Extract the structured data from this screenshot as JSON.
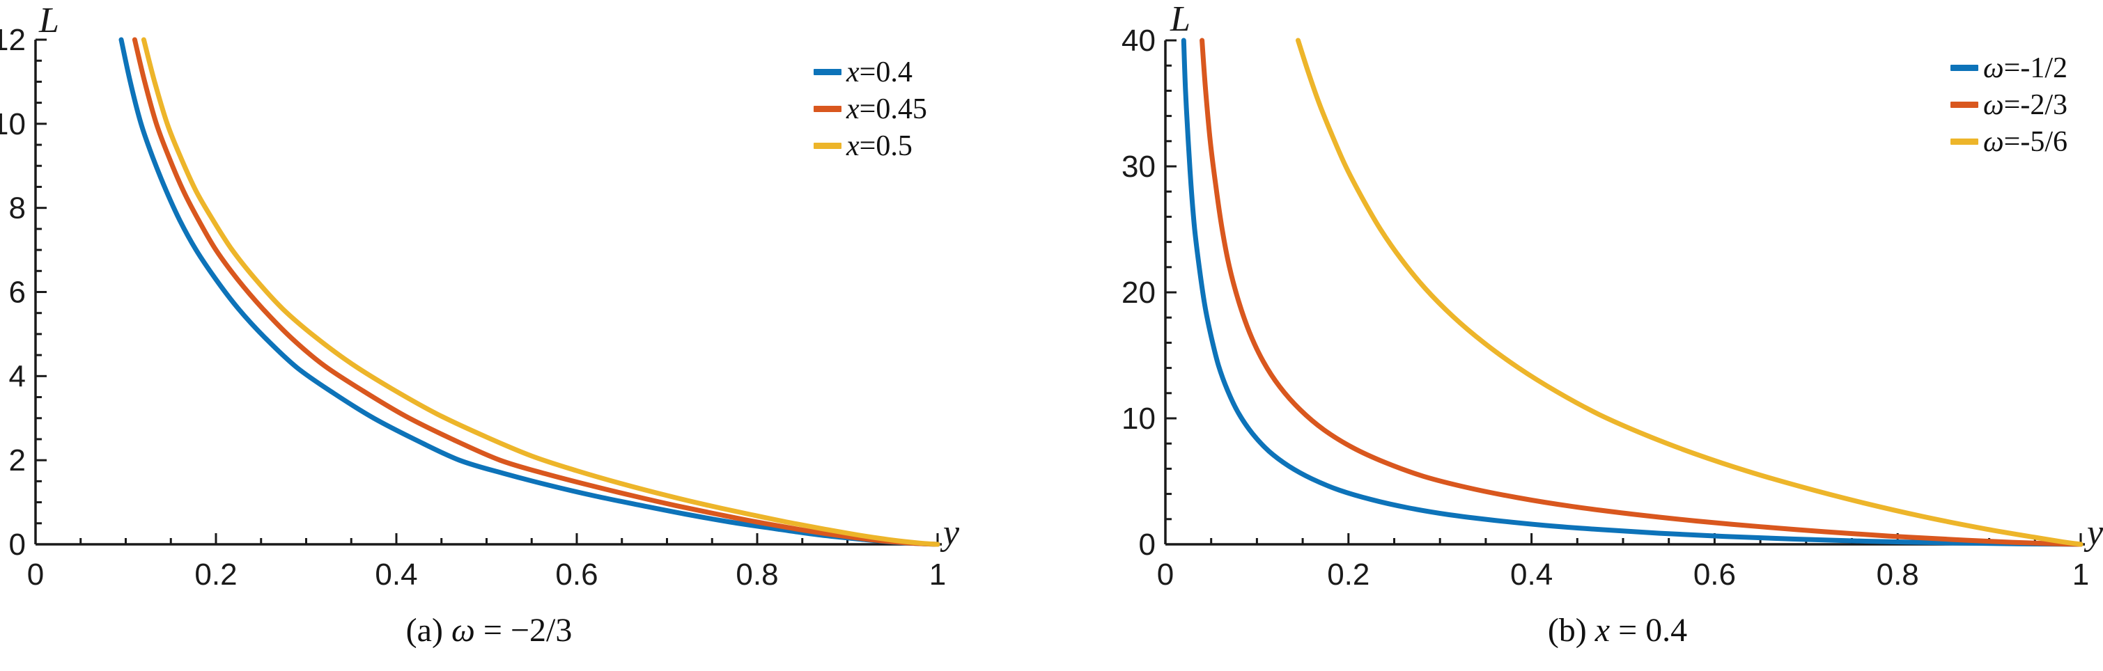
{
  "figure": {
    "background": "#ffffff",
    "text_color": "#1a1a1a"
  },
  "chart_data": [
    {
      "type": "line",
      "panel": "a",
      "caption_prefix": "(a)",
      "caption_var": "ω",
      "caption_rest": " = −2/3",
      "caption_full": "(a) ω = −2/3",
      "xlabel": "y",
      "ylabel": "L",
      "xlim": [
        0,
        1
      ],
      "ylim": [
        0,
        12
      ],
      "x_major_ticks": [
        0,
        0.2,
        0.4,
        0.6,
        0.8,
        1
      ],
      "x_tick_labels": [
        "0",
        "0.2",
        "0.4",
        "0.6",
        "0.8",
        "1"
      ],
      "x_minor_step": 0.05,
      "y_major_ticks": [
        0,
        2,
        4,
        6,
        8,
        10,
        12
      ],
      "y_tick_labels": [
        "0",
        "2",
        "4",
        "6",
        "8",
        "10",
        "12"
      ],
      "y_minor_step": 0.5,
      "grid": false,
      "legend_position": "top-right",
      "series": [
        {
          "name": "x=0.4",
          "var": "x",
          "rest": "=0.4",
          "color": "#0d73b9",
          "points": [
            [
              0.095,
              12
            ],
            [
              0.105,
              11
            ],
            [
              0.117,
              10
            ],
            [
              0.13,
              9.2
            ],
            [
              0.145,
              8.4
            ],
            [
              0.16,
              7.7
            ],
            [
              0.178,
              7
            ],
            [
              0.2,
              6.3
            ],
            [
              0.225,
              5.6
            ],
            [
              0.255,
              4.9
            ],
            [
              0.29,
              4.2
            ],
            [
              0.33,
              3.6
            ],
            [
              0.375,
              3.0
            ],
            [
              0.42,
              2.5
            ],
            [
              0.47,
              2.0
            ],
            [
              0.52,
              1.68
            ],
            [
              0.57,
              1.4
            ],
            [
              0.62,
              1.15
            ],
            [
              0.67,
              0.93
            ],
            [
              0.72,
              0.72
            ],
            [
              0.77,
              0.53
            ],
            [
              0.82,
              0.37
            ],
            [
              0.87,
              0.22
            ],
            [
              0.92,
              0.11
            ],
            [
              0.96,
              0.04
            ],
            [
              1,
              0
            ]
          ]
        },
        {
          "name": "x=0.45",
          "var": "x",
          "rest": "=0.45",
          "color": "#d9571e",
          "points": [
            [
              0.11,
              12
            ],
            [
              0.121,
              11
            ],
            [
              0.134,
              10
            ],
            [
              0.148,
              9.2
            ],
            [
              0.164,
              8.4
            ],
            [
              0.181,
              7.7
            ],
            [
              0.2,
              7
            ],
            [
              0.224,
              6.3
            ],
            [
              0.252,
              5.6
            ],
            [
              0.284,
              4.9
            ],
            [
              0.32,
              4.25
            ],
            [
              0.363,
              3.65
            ],
            [
              0.41,
              3.05
            ],
            [
              0.462,
              2.5
            ],
            [
              0.515,
              2.0
            ],
            [
              0.565,
              1.68
            ],
            [
              0.615,
              1.4
            ],
            [
              0.663,
              1.15
            ],
            [
              0.71,
              0.92
            ],
            [
              0.755,
              0.72
            ],
            [
              0.8,
              0.53
            ],
            [
              0.845,
              0.36
            ],
            [
              0.89,
              0.21
            ],
            [
              0.935,
              0.09
            ],
            [
              0.97,
              0.03
            ],
            [
              1,
              0
            ]
          ]
        },
        {
          "name": "x=0.5",
          "var": "x",
          "rest": "=0.5",
          "color": "#edb52a",
          "points": [
            [
              0.12,
              12
            ],
            [
              0.132,
              11
            ],
            [
              0.146,
              10
            ],
            [
              0.161,
              9.2
            ],
            [
              0.178,
              8.4
            ],
            [
              0.197,
              7.7
            ],
            [
              0.218,
              7
            ],
            [
              0.244,
              6.3
            ],
            [
              0.274,
              5.6
            ],
            [
              0.309,
              4.95
            ],
            [
              0.35,
              4.3
            ],
            [
              0.395,
              3.7
            ],
            [
              0.445,
              3.1
            ],
            [
              0.5,
              2.55
            ],
            [
              0.55,
              2.1
            ],
            [
              0.6,
              1.75
            ],
            [
              0.65,
              1.44
            ],
            [
              0.7,
              1.16
            ],
            [
              0.745,
              0.93
            ],
            [
              0.79,
              0.72
            ],
            [
              0.835,
              0.52
            ],
            [
              0.875,
              0.36
            ],
            [
              0.915,
              0.21
            ],
            [
              0.95,
              0.1
            ],
            [
              0.98,
              0.03
            ],
            [
              1,
              0
            ]
          ]
        }
      ]
    },
    {
      "type": "line",
      "panel": "b",
      "caption_prefix": "(b)",
      "caption_var": "x",
      "caption_rest": " = 0.4",
      "caption_full": "(b) x = 0.4",
      "xlabel": "y",
      "ylabel": "L",
      "xlim": [
        0,
        1
      ],
      "ylim": [
        0,
        40
      ],
      "x_major_ticks": [
        0,
        0.2,
        0.4,
        0.6,
        0.8,
        1
      ],
      "x_tick_labels": [
        "0",
        "0.2",
        "0.4",
        "0.6",
        "0.8",
        "1"
      ],
      "x_minor_step": 0.05,
      "y_major_ticks": [
        0,
        10,
        20,
        30,
        40
      ],
      "y_tick_labels": [
        "0",
        "10",
        "20",
        "30",
        "40"
      ],
      "y_minor_step": 2,
      "grid": false,
      "legend_position": "top-right",
      "series": [
        {
          "name": "ω=-1/2",
          "var": "ω",
          "rest": "=-1/2",
          "color": "#0d73b9",
          "points": [
            [
              0.02,
              40
            ],
            [
              0.022,
              36
            ],
            [
              0.025,
              32
            ],
            [
              0.028,
              28.5
            ],
            [
              0.032,
              25
            ],
            [
              0.037,
              22
            ],
            [
              0.043,
              19
            ],
            [
              0.05,
              16.5
            ],
            [
              0.058,
              14.2
            ],
            [
              0.068,
              12.2
            ],
            [
              0.08,
              10.4
            ],
            [
              0.095,
              8.8
            ],
            [
              0.113,
              7.4
            ],
            [
              0.135,
              6.2
            ],
            [
              0.16,
              5.2
            ],
            [
              0.19,
              4.3
            ],
            [
              0.225,
              3.55
            ],
            [
              0.265,
              2.9
            ],
            [
              0.31,
              2.35
            ],
            [
              0.36,
              1.9
            ],
            [
              0.415,
              1.5
            ],
            [
              0.475,
              1.17
            ],
            [
              0.54,
              0.88
            ],
            [
              0.61,
              0.63
            ],
            [
              0.685,
              0.42
            ],
            [
              0.765,
              0.25
            ],
            [
              0.85,
              0.12
            ],
            [
              0.93,
              0.04
            ],
            [
              1,
              0
            ]
          ]
        },
        {
          "name": "ω=-2/3",
          "var": "ω",
          "rest": "=-2/3",
          "color": "#d9571e",
          "points": [
            [
              0.04,
              40
            ],
            [
              0.044,
              36
            ],
            [
              0.049,
              32
            ],
            [
              0.055,
              28.5
            ],
            [
              0.062,
              25
            ],
            [
              0.07,
              22
            ],
            [
              0.08,
              19.3
            ],
            [
              0.092,
              16.8
            ],
            [
              0.107,
              14.5
            ],
            [
              0.125,
              12.5
            ],
            [
              0.147,
              10.7
            ],
            [
              0.173,
              9.1
            ],
            [
              0.204,
              7.7
            ],
            [
              0.24,
              6.5
            ],
            [
              0.282,
              5.4
            ],
            [
              0.33,
              4.5
            ],
            [
              0.385,
              3.7
            ],
            [
              0.445,
              3.0
            ],
            [
              0.51,
              2.4
            ],
            [
              0.58,
              1.85
            ],
            [
              0.65,
              1.4
            ],
            [
              0.72,
              1.0
            ],
            [
              0.79,
              0.66
            ],
            [
              0.86,
              0.38
            ],
            [
              0.925,
              0.16
            ],
            [
              0.97,
              0.05
            ],
            [
              1,
              0
            ]
          ]
        },
        {
          "name": "ω=-5/6",
          "var": "ω",
          "rest": "=-5/6",
          "color": "#edb52a",
          "points": [
            [
              0.145,
              40
            ],
            [
              0.156,
              37.5
            ],
            [
              0.168,
              35
            ],
            [
              0.182,
              32.5
            ],
            [
              0.197,
              30
            ],
            [
              0.215,
              27.5
            ],
            [
              0.235,
              25
            ],
            [
              0.258,
              22.6
            ],
            [
              0.284,
              20.3
            ],
            [
              0.314,
              18.1
            ],
            [
              0.348,
              16
            ],
            [
              0.386,
              14
            ],
            [
              0.428,
              12.1
            ],
            [
              0.474,
              10.3
            ],
            [
              0.524,
              8.7
            ],
            [
              0.578,
              7.2
            ],
            [
              0.636,
              5.8
            ],
            [
              0.698,
              4.5
            ],
            [
              0.762,
              3.3
            ],
            [
              0.828,
              2.2
            ],
            [
              0.894,
              1.25
            ],
            [
              0.95,
              0.55
            ],
            [
              0.98,
              0.2
            ],
            [
              1,
              0
            ]
          ]
        }
      ]
    }
  ]
}
